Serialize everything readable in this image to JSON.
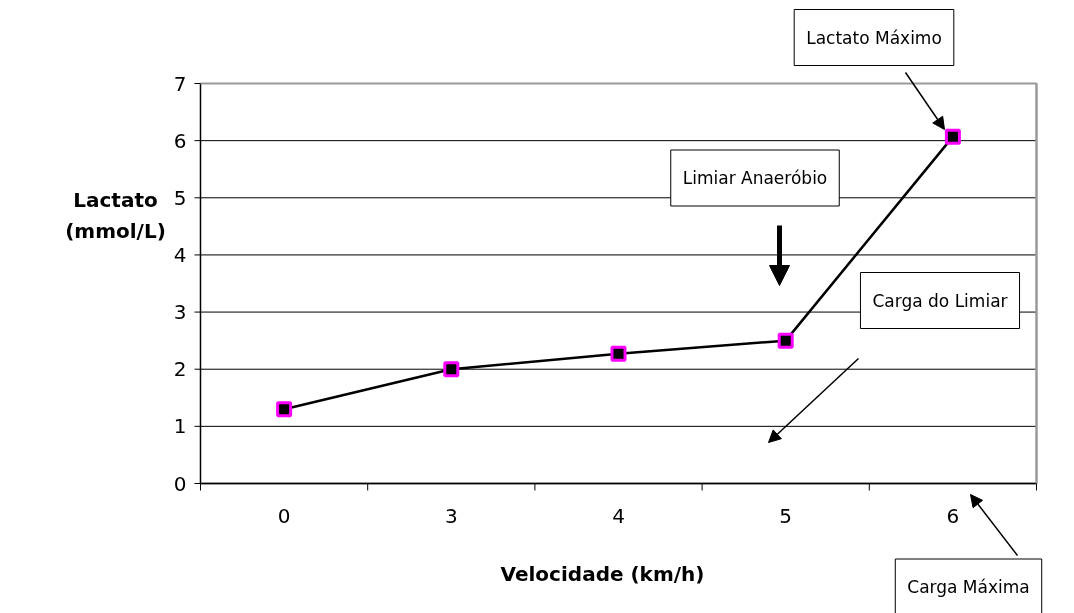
{
  "chart_data": {
    "type": "line",
    "categories": [
      "0",
      "3",
      "4",
      "5",
      "6"
    ],
    "series": [
      {
        "color": "#000000",
        "values": [
          1.3,
          2.0,
          2.27,
          2.5,
          6.07
        ]
      }
    ],
    "xlabel": "Velocidade (km/h)",
    "ylabel": "Lactato (mmol/L)",
    "ylim": [
      0,
      7
    ],
    "yticks": [
      0,
      1,
      2,
      3,
      4,
      5,
      6,
      7
    ],
    "grid": "y",
    "marker": "square",
    "line_style": "solid",
    "annotations": [
      "Lactato Máximo",
      "Limiar Anaeróbio",
      "Carga do Limiar",
      "Carga Máxima"
    ]
  }
}
